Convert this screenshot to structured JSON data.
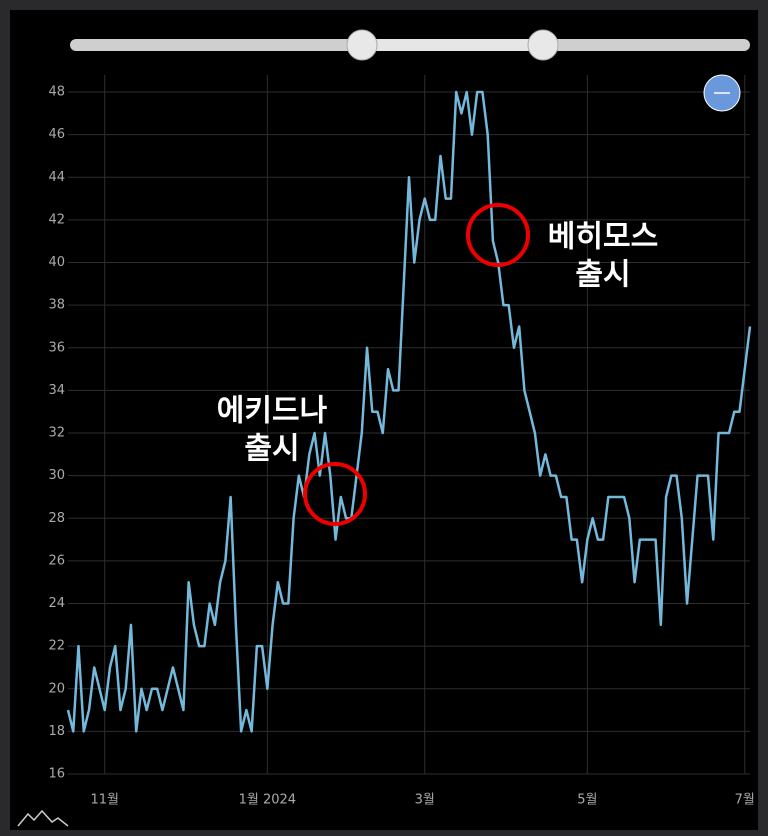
{
  "chart_data": {
    "type": "line",
    "categories": [
      null,
      null,
      null,
      null,
      null,
      null,
      null,
      "11월",
      null,
      null,
      null,
      null,
      null,
      null,
      null,
      null,
      null,
      null,
      null,
      null,
      null,
      null,
      null,
      null,
      null,
      null,
      null,
      null,
      null,
      null,
      null,
      null,
      null,
      null,
      null,
      null,
      null,
      null,
      "1월 2024",
      null,
      null,
      null,
      null,
      null,
      null,
      null,
      null,
      null,
      null,
      null,
      null,
      null,
      null,
      null,
      null,
      null,
      null,
      null,
      null,
      null,
      null,
      null,
      null,
      null,
      null,
      null,
      null,
      null,
      "3월",
      null,
      null,
      null,
      null,
      null,
      null,
      null,
      null,
      null,
      null,
      null,
      null,
      null,
      null,
      null,
      null,
      null,
      null,
      null,
      null,
      null,
      null,
      null,
      null,
      null,
      null,
      null,
      null,
      null,
      null,
      "5월",
      null,
      null,
      null,
      null,
      null,
      null,
      null,
      null,
      null,
      null,
      null,
      null,
      null,
      null,
      null,
      null,
      null,
      null,
      null,
      null,
      null,
      null,
      null,
      null,
      null,
      null,
      null,
      null,
      null,
      "7월",
      null
    ],
    "series": [
      {
        "color": "#74b9dc",
        "values": [
          19,
          18,
          22,
          18,
          19,
          21,
          20,
          19,
          21,
          22,
          19,
          20,
          23,
          18,
          20,
          19,
          20,
          20,
          19,
          20,
          21,
          20,
          19,
          25,
          23,
          22,
          22,
          24,
          23,
          25,
          26,
          29,
          23,
          18,
          19,
          18,
          22,
          22,
          20,
          23,
          25,
          24,
          24,
          28,
          30,
          29,
          31,
          32,
          30,
          32,
          30,
          27,
          29,
          28,
          28,
          30,
          32,
          36,
          33,
          33,
          32,
          35,
          34,
          34,
          39,
          44,
          40,
          42,
          43,
          42,
          42,
          45,
          43,
          43,
          48,
          47,
          48,
          46,
          48,
          48,
          46,
          41,
          40,
          38,
          38,
          36,
          37,
          34,
          33,
          32,
          30,
          31,
          30,
          30,
          29,
          29,
          27,
          27,
          25,
          27,
          28,
          27,
          27,
          29,
          29,
          29,
          29,
          28,
          25,
          27,
          27,
          27,
          27,
          23,
          29,
          30,
          30,
          28,
          24,
          27,
          30,
          30,
          30,
          27,
          32,
          32,
          32,
          33,
          33,
          35,
          37
        ]
      }
    ],
    "ylim": [
      16,
      48.8
    ],
    "yticks": [
      16,
      18,
      20,
      22,
      24,
      26,
      28,
      30,
      32,
      34,
      36,
      38,
      40,
      42,
      44,
      46,
      48
    ],
    "grid": true,
    "annotations": [
      {
        "lines": [
          "에키드나",
          "출시"
        ]
      },
      {
        "lines": [
          "베히모스",
          "출시"
        ]
      }
    ]
  }
}
